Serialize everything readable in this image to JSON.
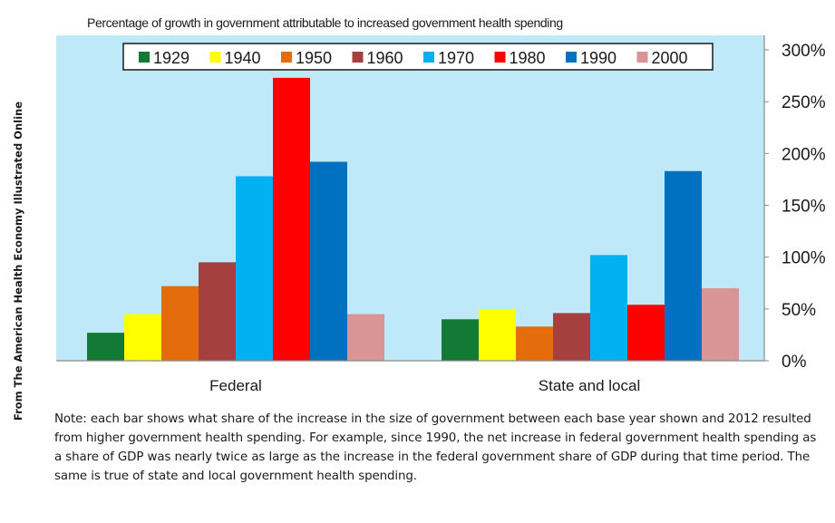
{
  "side_credit": "From The American Health Economy Illustrated Online",
  "note": "Note:  each bar shows what share of the increase in the size of government between each base year shown and 2012 resulted from higher government health spending. For example, since 1990, the net increase in federal government health spending as a share of GDP was nearly twice as  large as the increase in the federal government share of GDP during that time period. The same is true of state and local government health spending.",
  "colors": {
    "plot_background": "#bfe9f8",
    "1929": "#137a36",
    "1940": "#ffff00",
    "1950": "#e46c0a",
    "1960": "#a5403f",
    "1970": "#00b0f0",
    "1980": "#ff0000",
    "1990": "#0070c0",
    "2000": "#d99594"
  },
  "chart_data": {
    "type": "bar",
    "title": "Percentage  of  growth in government attributable to increased government health spending",
    "xlabel": "",
    "ylabel": "",
    "categories": [
      "Federal",
      "State and local"
    ],
    "series": [
      {
        "name": "1929",
        "values": [
          27,
          40
        ]
      },
      {
        "name": "1940",
        "values": [
          45,
          50
        ]
      },
      {
        "name": "1950",
        "values": [
          72,
          33
        ]
      },
      {
        "name": "1960",
        "values": [
          95,
          46
        ]
      },
      {
        "name": "1970",
        "values": [
          178,
          102
        ]
      },
      {
        "name": "1980",
        "values": [
          273,
          54
        ]
      },
      {
        "name": "1990",
        "values": [
          192,
          183
        ]
      },
      {
        "name": "2000",
        "values": [
          45,
          70
        ]
      }
    ],
    "ylim": [
      0,
      300
    ],
    "yticks": [
      0,
      50,
      100,
      150,
      200,
      250,
      300
    ],
    "ytick_labels": [
      "0%",
      "50%",
      "100%",
      "150%",
      "200%",
      "250%",
      "300%"
    ],
    "y_axis_position": "right",
    "grid": false,
    "legend_position": "top-center"
  }
}
